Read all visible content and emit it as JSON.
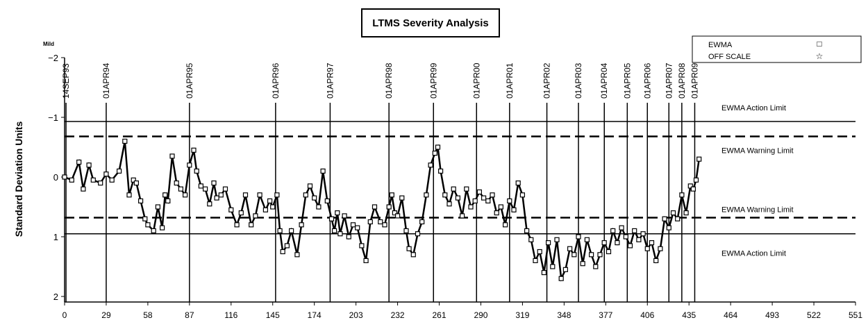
{
  "chart_data": {
    "type": "line",
    "title": "LTMS Severity Analysis",
    "ylabel": "Standard Deviation Units",
    "ytick_annotation": "Mild",
    "xlim": [
      0,
      551
    ],
    "ylim": [
      -2,
      2
    ],
    "y_inverted": true,
    "x_ticks": [
      0,
      29,
      58,
      87,
      116,
      145,
      174,
      203,
      232,
      261,
      290,
      319,
      348,
      377,
      406,
      435,
      464,
      493,
      522,
      551
    ],
    "y_ticks": [
      -2,
      -1,
      0,
      1,
      2
    ],
    "y_tick_labels": [
      "−2",
      "−1",
      "0",
      "1",
      "2"
    ],
    "legend": {
      "placement": "top-right",
      "entries": [
        {
          "label": "EWMA",
          "marker": "□"
        },
        {
          "label": "OFF SCALE",
          "marker": "☆"
        }
      ]
    },
    "limits": [
      {
        "label": "EWMA Action Limit",
        "y": -0.93,
        "style": "solid"
      },
      {
        "label": "EWMA Warning Limit",
        "y": -0.68,
        "style": "dashed"
      },
      {
        "label": "EWMA Warning Limit",
        "y": 0.68,
        "style": "dashed"
      },
      {
        "label": "EWMA Action Limit",
        "y": 0.95,
        "style": "solid"
      }
    ],
    "date_markers": [
      {
        "label": "14SEP93",
        "x": 1
      },
      {
        "label": "01APR94",
        "x": 29
      },
      {
        "label": "01APR95",
        "x": 87
      },
      {
        "label": "01APR96",
        "x": 147
      },
      {
        "label": "01APR97",
        "x": 185
      },
      {
        "label": "01APR98",
        "x": 226
      },
      {
        "label": "01APR99",
        "x": 257
      },
      {
        "label": "01APR00",
        "x": 287
      },
      {
        "label": "01APR01",
        "x": 310
      },
      {
        "label": "01APR02",
        "x": 336
      },
      {
        "label": "01APR03",
        "x": 358
      },
      {
        "label": "01APR04",
        "x": 376
      },
      {
        "label": "01APR05",
        "x": 392
      },
      {
        "label": "01APR06",
        "x": 406
      },
      {
        "label": "01APR07",
        "x": 421
      },
      {
        "label": "01APR08",
        "x": 430
      },
      {
        "label": "01APR09",
        "x": 439
      }
    ],
    "series": [
      {
        "name": "EWMA",
        "x": [
          0,
          5,
          10,
          13,
          17,
          20,
          25,
          29,
          33,
          38,
          42,
          45,
          48,
          50,
          53,
          56,
          58,
          62,
          65,
          68,
          70,
          72,
          75,
          78,
          81,
          84,
          87,
          90,
          92,
          95,
          98,
          101,
          104,
          106,
          109,
          112,
          116,
          120,
          123,
          126,
          130,
          133,
          136,
          140,
          143,
          145,
          148,
          150,
          152,
          155,
          158,
          162,
          165,
          168,
          171,
          174,
          177,
          180,
          183,
          186,
          188,
          190,
          192,
          195,
          198,
          201,
          204,
          207,
          210,
          213,
          216,
          220,
          223,
          226,
          228,
          230,
          232,
          235,
          238,
          240,
          243,
          246,
          249,
          252,
          255,
          258,
          260,
          262,
          265,
          268,
          271,
          274,
          277,
          280,
          283,
          286,
          289,
          292,
          295,
          298,
          301,
          304,
          307,
          310,
          313,
          316,
          319,
          322,
          325,
          328,
          331,
          334,
          337,
          340,
          343,
          346,
          349,
          352,
          355,
          358,
          361,
          364,
          367,
          370,
          373,
          376,
          379,
          382,
          385,
          388,
          391,
          394,
          397,
          400,
          403,
          406,
          409,
          412,
          415,
          418,
          421,
          424,
          427,
          430,
          433,
          436,
          438,
          440,
          442
        ],
        "y": [
          0.0,
          0.05,
          -0.25,
          0.2,
          -0.2,
          0.05,
          0.1,
          -0.05,
          0.05,
          -0.1,
          -0.6,
          0.3,
          0.05,
          0.1,
          0.4,
          0.7,
          0.8,
          0.9,
          0.5,
          0.85,
          0.3,
          0.4,
          -0.35,
          0.1,
          0.2,
          0.3,
          -0.2,
          -0.45,
          -0.1,
          0.15,
          0.2,
          0.45,
          0.1,
          0.35,
          0.3,
          0.2,
          0.55,
          0.8,
          0.6,
          0.3,
          0.8,
          0.65,
          0.3,
          0.55,
          0.4,
          0.5,
          0.3,
          0.9,
          1.25,
          1.15,
          0.9,
          1.3,
          0.8,
          0.3,
          0.15,
          0.35,
          0.5,
          -0.1,
          0.4,
          0.7,
          0.9,
          0.6,
          0.95,
          0.65,
          1.0,
          0.8,
          0.85,
          1.15,
          1.4,
          0.75,
          0.5,
          0.75,
          0.8,
          0.5,
          0.3,
          0.6,
          0.65,
          0.35,
          0.9,
          1.2,
          1.3,
          0.95,
          0.75,
          0.3,
          -0.2,
          -0.4,
          -0.5,
          -0.1,
          0.3,
          0.45,
          0.2,
          0.35,
          0.65,
          0.2,
          0.5,
          0.4,
          0.25,
          0.35,
          0.4,
          0.3,
          0.6,
          0.5,
          0.8,
          0.4,
          0.55,
          0.1,
          0.3,
          0.9,
          1.05,
          1.4,
          1.25,
          1.6,
          1.1,
          1.5,
          1.05,
          1.7,
          1.55,
          1.2,
          1.3,
          1.0,
          1.45,
          1.05,
          1.3,
          1.5,
          1.3,
          1.1,
          1.25,
          0.9,
          1.1,
          0.85,
          1.0,
          1.15,
          0.9,
          1.05,
          0.95,
          1.2,
          1.1,
          1.4,
          1.2,
          0.7,
          0.85,
          0.6,
          0.7,
          0.3,
          0.6,
          0.15,
          0.2,
          0.05,
          -0.3
        ]
      }
    ]
  }
}
